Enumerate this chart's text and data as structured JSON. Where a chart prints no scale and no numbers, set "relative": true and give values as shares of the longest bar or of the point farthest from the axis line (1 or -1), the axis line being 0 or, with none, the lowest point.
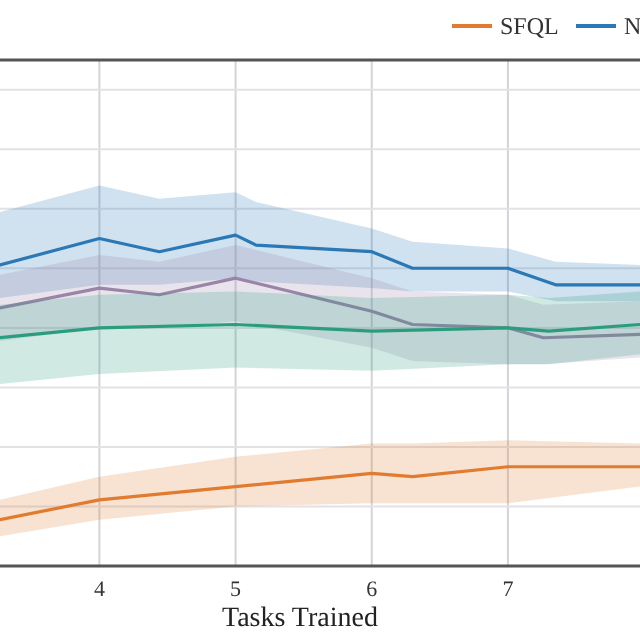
{
  "chart_data": {
    "type": "line",
    "relative": true,
    "xlabel": "Tasks Trained",
    "xlim": [
      3.27,
      7.97
    ],
    "xticks": [
      4,
      5,
      6,
      7
    ],
    "grid": true,
    "legend": "top right",
    "series": [
      {
        "name": "SFQL",
        "color": "#e07b2f",
        "x": [
          3.27,
          4,
          5,
          6,
          6.3,
          7,
          7.97
        ],
        "values": [
          0.14,
          0.2,
          0.24,
          0.28,
          0.27,
          0.3,
          0.3
        ],
        "lower": [
          0.09,
          0.14,
          0.18,
          0.19,
          0.19,
          0.19,
          0.24
        ],
        "upper": [
          0.2,
          0.27,
          0.33,
          0.37,
          0.37,
          0.38,
          0.37
        ]
      },
      {
        "name": "N",
        "color": "#2a78b5",
        "x": [
          3.27,
          4,
          4.44,
          5,
          5.15,
          6,
          6.3,
          7,
          7.35,
          7.97
        ],
        "values": [
          0.91,
          0.99,
          0.95,
          1,
          0.97,
          0.95,
          0.9,
          0.9,
          0.85,
          0.85
        ],
        "lower": [
          0.81,
          0.85,
          0.85,
          0.87,
          0.86,
          0.84,
          0.83,
          0.83,
          0.8,
          0.8
        ],
        "upper": [
          1.07,
          1.15,
          1.11,
          1.13,
          1.1,
          1.02,
          0.98,
          0.96,
          0.92,
          0.91
        ]
      },
      {
        "color": "#9a84a8",
        "x": [
          3.27,
          4,
          4.44,
          5,
          6,
          6.3,
          7,
          7.26,
          7.97
        ],
        "values": [
          0.78,
          0.84,
          0.82,
          0.87,
          0.77,
          0.73,
          0.72,
          0.69,
          0.7
        ],
        "lower": [
          0.68,
          0.72,
          0.72,
          0.74,
          0.66,
          0.62,
          0.61,
          0.61,
          0.63
        ],
        "upper": [
          0.88,
          0.94,
          0.92,
          0.97,
          0.87,
          0.83,
          0.82,
          0.79,
          0.8
        ]
      },
      {
        "color": "#2a9d7f",
        "x": [
          3.27,
          4,
          5,
          6,
          7,
          7.3,
          7.97
        ],
        "values": [
          0.69,
          0.72,
          0.73,
          0.71,
          0.72,
          0.71,
          0.73
        ],
        "lower": [
          0.55,
          0.58,
          0.6,
          0.59,
          0.61,
          0.61,
          0.64
        ],
        "upper": [
          0.79,
          0.82,
          0.83,
          0.81,
          0.82,
          0.81,
          0.83
        ]
      }
    ]
  }
}
